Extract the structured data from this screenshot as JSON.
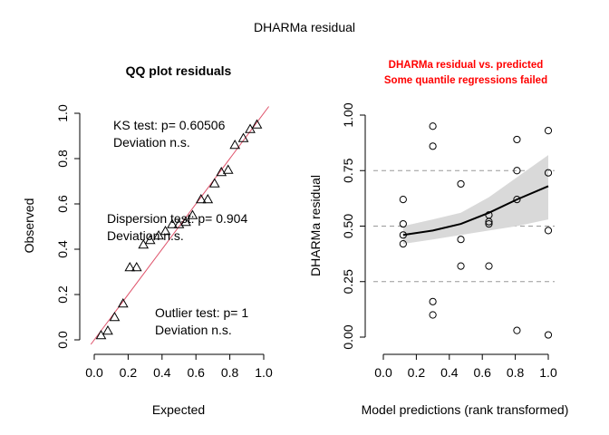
{
  "main_title": "DHARMa residual",
  "chart_data": [
    {
      "type": "scatter",
      "title": "QQ plot residuals",
      "xlabel": "Expected",
      "ylabel": "Observed",
      "xlim": [
        0,
        1
      ],
      "ylim": [
        0,
        1
      ],
      "x_ticks": [
        "0.0",
        "0.2",
        "0.4",
        "0.6",
        "0.8",
        "1.0"
      ],
      "y_ticks": [
        "0.0",
        "0.2",
        "0.4",
        "0.6",
        "0.8",
        "1.0"
      ],
      "reference_line": "y = x",
      "reference_color": "#df536b",
      "marker": "triangle",
      "points": [
        {
          "x": 0.04,
          "y": 0.02
        },
        {
          "x": 0.08,
          "y": 0.04
        },
        {
          "x": 0.12,
          "y": 0.1
        },
        {
          "x": 0.17,
          "y": 0.16
        },
        {
          "x": 0.21,
          "y": 0.32
        },
        {
          "x": 0.25,
          "y": 0.32
        },
        {
          "x": 0.29,
          "y": 0.42
        },
        {
          "x": 0.33,
          "y": 0.44
        },
        {
          "x": 0.38,
          "y": 0.46
        },
        {
          "x": 0.42,
          "y": 0.48
        },
        {
          "x": 0.46,
          "y": 0.51
        },
        {
          "x": 0.5,
          "y": 0.51
        },
        {
          "x": 0.54,
          "y": 0.52
        },
        {
          "x": 0.58,
          "y": 0.55
        },
        {
          "x": 0.63,
          "y": 0.62
        },
        {
          "x": 0.67,
          "y": 0.62
        },
        {
          "x": 0.71,
          "y": 0.69
        },
        {
          "x": 0.75,
          "y": 0.74
        },
        {
          "x": 0.79,
          "y": 0.75
        },
        {
          "x": 0.83,
          "y": 0.86
        },
        {
          "x": 0.88,
          "y": 0.89
        },
        {
          "x": 0.92,
          "y": 0.93
        },
        {
          "x": 0.96,
          "y": 0.95
        }
      ],
      "annotations": [
        {
          "line1": "KS test: p= 0.60506",
          "line2": "Deviation  n.s."
        },
        {
          "line1": "Dispersion test: p= 0.904",
          "line2": "Deviation  n.s."
        },
        {
          "line1": "Outlier test: p= 1",
          "line2": "Deviation  n.s."
        }
      ]
    },
    {
      "type": "scatter",
      "title": "DHARMa residual vs. predicted",
      "subtitle": "Some quantile regressions failed",
      "title_color": "#ff0000",
      "xlabel": "Model predictions (rank transformed)",
      "ylabel": "DHARMa residual",
      "xlim": [
        0,
        1
      ],
      "ylim": [
        0,
        1
      ],
      "x_ticks": [
        "0.0",
        "0.2",
        "0.4",
        "0.6",
        "0.8",
        "1.0"
      ],
      "y_ticks": [
        "0.00",
        "0.25",
        "0.50",
        "0.75",
        "1.00"
      ],
      "hlines": [
        0.25,
        0.5,
        0.75
      ],
      "marker": "circle",
      "points": [
        {
          "x": 0.12,
          "y": 0.62
        },
        {
          "x": 0.12,
          "y": 0.51
        },
        {
          "x": 0.12,
          "y": 0.46
        },
        {
          "x": 0.12,
          "y": 0.42
        },
        {
          "x": 0.3,
          "y": 0.95
        },
        {
          "x": 0.3,
          "y": 0.86
        },
        {
          "x": 0.3,
          "y": 0.16
        },
        {
          "x": 0.3,
          "y": 0.1
        },
        {
          "x": 0.47,
          "y": 0.69
        },
        {
          "x": 0.47,
          "y": 0.44
        },
        {
          "x": 0.47,
          "y": 0.32
        },
        {
          "x": 0.64,
          "y": 0.55
        },
        {
          "x": 0.64,
          "y": 0.52
        },
        {
          "x": 0.64,
          "y": 0.51
        },
        {
          "x": 0.64,
          "y": 0.32
        },
        {
          "x": 0.81,
          "y": 0.89
        },
        {
          "x": 0.81,
          "y": 0.75
        },
        {
          "x": 0.81,
          "y": 0.62
        },
        {
          "x": 0.81,
          "y": 0.03
        },
        {
          "x": 1.0,
          "y": 0.93
        },
        {
          "x": 1.0,
          "y": 0.74
        },
        {
          "x": 1.0,
          "y": 0.48
        },
        {
          "x": 1.0,
          "y": 0.01
        }
      ],
      "smooth": {
        "x": [
          0.12,
          0.3,
          0.47,
          0.64,
          0.81,
          1.0
        ],
        "y": [
          0.46,
          0.48,
          0.51,
          0.56,
          0.62,
          0.68
        ],
        "lower": [
          0.42,
          0.44,
          0.46,
          0.48,
          0.5,
          0.53
        ],
        "upper": [
          0.5,
          0.53,
          0.56,
          0.63,
          0.72,
          0.82
        ],
        "band_color": "#d9d9d9"
      }
    }
  ]
}
